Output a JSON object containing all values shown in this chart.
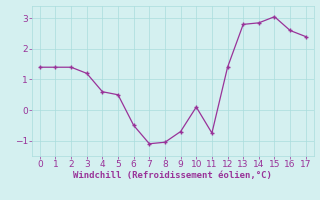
{
  "x": [
    0,
    1,
    2,
    3,
    4,
    5,
    6,
    7,
    8,
    9,
    10,
    11,
    12,
    13,
    14,
    15,
    16,
    17
  ],
  "y": [
    1.4,
    1.4,
    1.4,
    1.2,
    0.6,
    0.5,
    -0.5,
    -1.1,
    -1.05,
    -0.7,
    0.1,
    -0.75,
    1.4,
    2.8,
    2.85,
    3.05,
    2.6,
    2.4
  ],
  "line_color": "#993399",
  "marker_color": "#993399",
  "bg_color": "#d4f0f0",
  "grid_color": "#aadddd",
  "xlabel": "Windchill (Refroidissement éolien,°C)",
  "xlabel_color": "#993399",
  "ylim": [
    -1.5,
    3.4
  ],
  "xlim": [
    -0.5,
    17.5
  ],
  "yticks": [
    -1,
    0,
    1,
    2,
    3
  ],
  "xticks": [
    0,
    1,
    2,
    3,
    4,
    5,
    6,
    7,
    8,
    9,
    10,
    11,
    12,
    13,
    14,
    15,
    16,
    17
  ],
  "tick_color": "#993399",
  "label_fontsize": 6.5,
  "tick_fontsize": 6.5
}
